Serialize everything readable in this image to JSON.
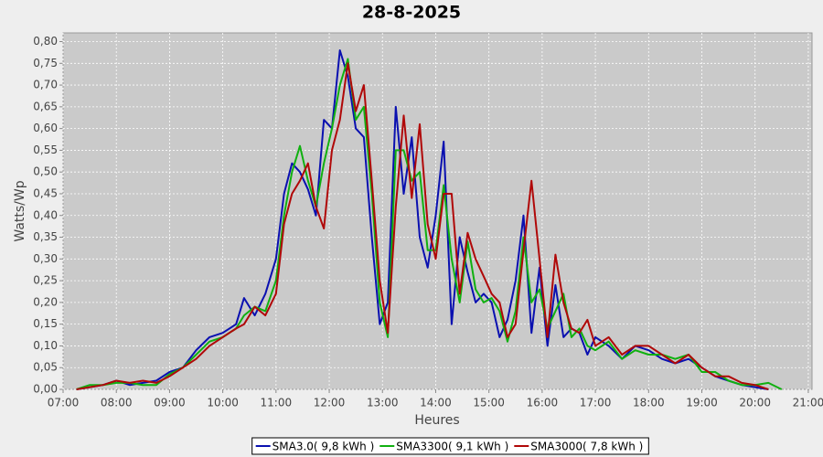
{
  "chart_data": {
    "type": "line",
    "title": "28-8-2025",
    "xlabel": "Heures",
    "ylabel": "Watts/Wp",
    "grid": true,
    "legend": "bottom",
    "xlim": [
      7,
      21.07
    ],
    "ylim": [
      0,
      0.82
    ],
    "xticks": [
      {
        "value": 7,
        "label": "07:00"
      },
      {
        "value": 8,
        "label": "08:00"
      },
      {
        "value": 9,
        "label": "09:00"
      },
      {
        "value": 10,
        "label": "10:00"
      },
      {
        "value": 11,
        "label": "11:00"
      },
      {
        "value": 12,
        "label": "12:00"
      },
      {
        "value": 13,
        "label": "13:00"
      },
      {
        "value": 14,
        "label": "14:00"
      },
      {
        "value": 15,
        "label": "15:00"
      },
      {
        "value": 16,
        "label": "16:00"
      },
      {
        "value": 17,
        "label": "17:00"
      },
      {
        "value": 18,
        "label": "18:00"
      },
      {
        "value": 19,
        "label": "19:00"
      },
      {
        "value": 20,
        "label": "20:00"
      },
      {
        "value": 21,
        "label": "21:00"
      }
    ],
    "yticks": [
      {
        "value": 0,
        "label": "0,00"
      },
      {
        "value": 0.05,
        "label": "0,05"
      },
      {
        "value": 0.1,
        "label": "0,10"
      },
      {
        "value": 0.15,
        "label": "0,15"
      },
      {
        "value": 0.2,
        "label": "0,20"
      },
      {
        "value": 0.25,
        "label": "0,25"
      },
      {
        "value": 0.3,
        "label": "0,30"
      },
      {
        "value": 0.35,
        "label": "0,35"
      },
      {
        "value": 0.4,
        "label": "0,40"
      },
      {
        "value": 0.45,
        "label": "0,45"
      },
      {
        "value": 0.5,
        "label": "0,50"
      },
      {
        "value": 0.55,
        "label": "0,55"
      },
      {
        "value": 0.6,
        "label": "0,60"
      },
      {
        "value": 0.65,
        "label": "0,65"
      },
      {
        "value": 0.7,
        "label": "0,70"
      },
      {
        "value": 0.75,
        "label": "0,75"
      },
      {
        "value": 0.8,
        "label": "0,80"
      }
    ],
    "x": [
      7.25,
      7.5,
      7.75,
      8.0,
      8.25,
      8.5,
      8.75,
      9.0,
      9.25,
      9.5,
      9.75,
      10.0,
      10.25,
      10.4,
      10.6,
      10.8,
      11.0,
      11.15,
      11.3,
      11.45,
      11.6,
      11.75,
      11.9,
      12.05,
      12.2,
      12.35,
      12.5,
      12.65,
      12.8,
      12.95,
      13.1,
      13.25,
      13.4,
      13.55,
      13.7,
      13.85,
      14.0,
      14.15,
      14.3,
      14.45,
      14.6,
      14.75,
      14.9,
      15.05,
      15.2,
      15.35,
      15.5,
      15.65,
      15.8,
      15.95,
      16.1,
      16.25,
      16.4,
      16.55,
      16.7,
      16.85,
      17.0,
      17.25,
      17.5,
      17.75,
      18.0,
      18.25,
      18.5,
      18.75,
      19.0,
      19.25,
      19.5,
      19.75,
      20.0,
      20.25,
      20.5
    ],
    "series": [
      {
        "name": "SMA3.0( 9,8 kWh )",
        "color": "#0a10b0",
        "values": [
          0,
          0.005,
          0.01,
          0.02,
          0.01,
          0.015,
          0.02,
          0.04,
          0.05,
          0.09,
          0.12,
          0.13,
          0.15,
          0.21,
          0.17,
          0.22,
          0.3,
          0.45,
          0.52,
          0.5,
          0.46,
          0.4,
          0.62,
          0.6,
          0.78,
          0.72,
          0.6,
          0.58,
          0.35,
          0.15,
          0.2,
          0.65,
          0.45,
          0.58,
          0.35,
          0.28,
          0.4,
          0.57,
          0.15,
          0.35,
          0.27,
          0.2,
          0.22,
          0.2,
          0.12,
          0.16,
          0.25,
          0.4,
          0.13,
          0.28,
          0.1,
          0.24,
          0.12,
          0.14,
          0.13,
          0.08,
          0.12,
          0.1,
          0.07,
          0.1,
          0.09,
          0.07,
          0.06,
          0.07,
          0.05,
          0.03,
          0.02,
          0.01,
          0.005,
          0.0,
          null
        ]
      },
      {
        "name": "SMA3300( 9,1 kWh )",
        "color": "#10b010",
        "values": [
          0.0,
          0.01,
          0.01,
          0.015,
          0.015,
          0.01,
          0.01,
          0.035,
          0.05,
          0.08,
          0.11,
          0.12,
          0.14,
          0.17,
          0.19,
          0.18,
          0.25,
          0.4,
          0.5,
          0.56,
          0.48,
          0.42,
          0.52,
          0.6,
          0.7,
          0.76,
          0.62,
          0.65,
          0.45,
          0.2,
          0.12,
          0.55,
          0.55,
          0.48,
          0.5,
          0.32,
          0.32,
          0.47,
          0.3,
          0.2,
          0.34,
          0.23,
          0.2,
          0.21,
          0.18,
          0.11,
          0.18,
          0.35,
          0.2,
          0.23,
          0.14,
          0.18,
          0.22,
          0.12,
          0.14,
          0.1,
          0.09,
          0.11,
          0.07,
          0.09,
          0.08,
          0.08,
          0.07,
          0.08,
          0.04,
          0.04,
          0.02,
          0.01,
          0.01,
          0.015,
          0.0
        ]
      },
      {
        "name": "SMA3000( 7,8 kWh )",
        "color": "#b00808",
        "values": [
          0.0,
          0.005,
          0.01,
          0.02,
          0.015,
          0.02,
          0.015,
          0.03,
          0.05,
          0.07,
          0.1,
          0.12,
          0.14,
          0.15,
          0.19,
          0.17,
          0.22,
          0.38,
          0.45,
          0.48,
          0.52,
          0.42,
          0.37,
          0.55,
          0.62,
          0.75,
          0.64,
          0.7,
          0.48,
          0.25,
          0.13,
          0.42,
          0.63,
          0.44,
          0.61,
          0.38,
          0.3,
          0.45,
          0.45,
          0.22,
          0.36,
          0.3,
          0.26,
          0.22,
          0.2,
          0.12,
          0.15,
          0.32,
          0.48,
          0.3,
          0.12,
          0.31,
          0.2,
          0.14,
          0.13,
          0.16,
          0.1,
          0.12,
          0.08,
          0.1,
          0.1,
          0.08,
          0.06,
          0.08,
          0.05,
          0.03,
          0.03,
          0.015,
          0.01,
          0.0,
          null
        ]
      }
    ]
  }
}
